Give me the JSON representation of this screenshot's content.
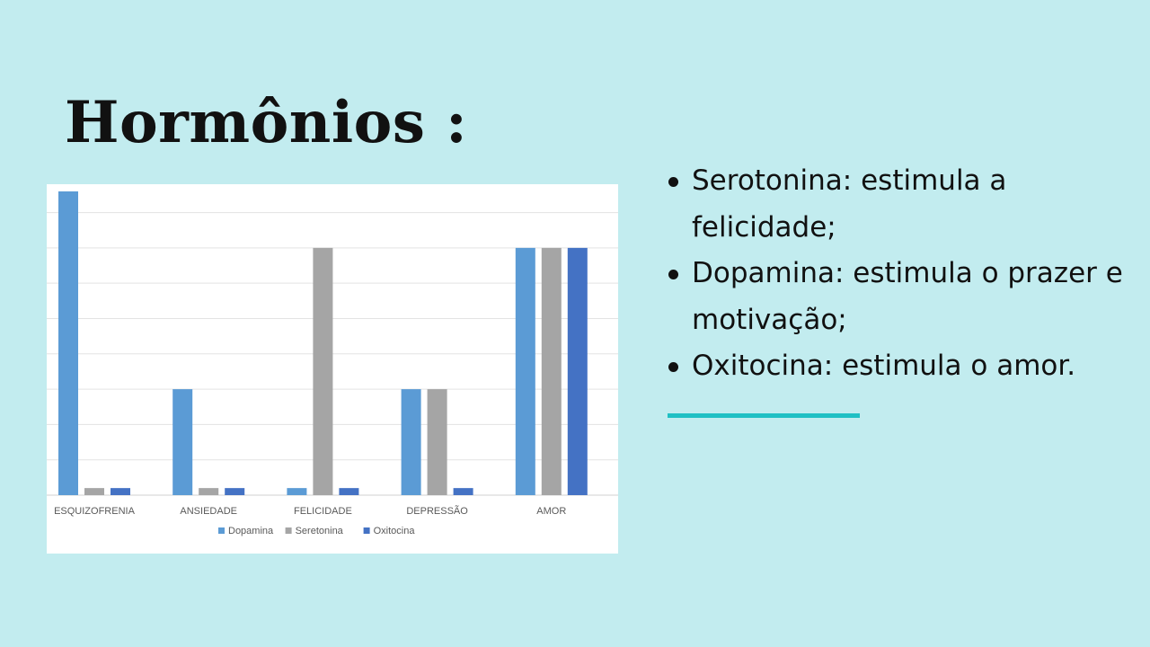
{
  "slide": {
    "title": "Hormônios :",
    "bullets": [
      "Serotonina: estimula a felicidade;",
      "Dopamina: estimula o prazer e motivação;",
      "Oxitocina: estimula o amor."
    ]
  },
  "colors": {
    "background": "#c2ecef",
    "accent_line": "#1fc0c4"
  },
  "chart_data": {
    "type": "bar",
    "title": "",
    "xlabel": "",
    "ylabel": "",
    "categories": [
      "ESQUIZOFRENIA",
      "ANSIEDADE",
      "FELICIDADE",
      "DEPRESSÃO",
      "AMOR"
    ],
    "series": [
      {
        "name": "Dopamina",
        "color": "#5b9bd5",
        "values": [
          8.6,
          3,
          0.2,
          3,
          7
        ]
      },
      {
        "name": "Seretonina",
        "color": "#a5a5a5",
        "values": [
          0.2,
          0.2,
          7,
          3,
          7
        ]
      },
      {
        "name": "Oxitocina",
        "color": "#4472c4",
        "values": [
          0.2,
          0.2,
          0.2,
          0.2,
          7
        ]
      }
    ],
    "ylim": [
      0,
      8.6
    ],
    "grid": true,
    "legend": "bottom"
  }
}
